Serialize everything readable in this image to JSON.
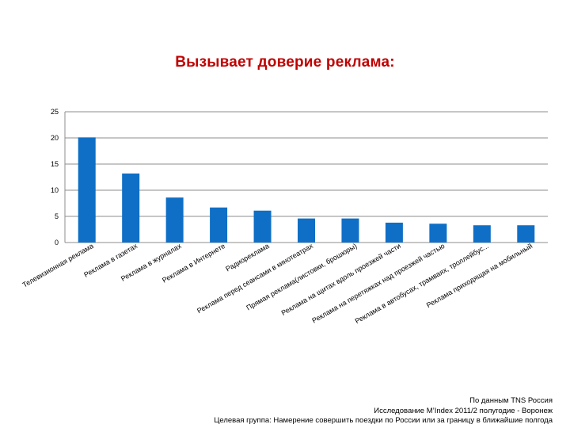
{
  "chart_data": {
    "type": "bar",
    "title": "Вызывает доверие реклама:",
    "categories": [
      "Телевизионная реклама",
      "Реклама в газетах",
      "Реклама в журналах",
      "Реклама в Интернете",
      "Радиореклама",
      "Реклама перед сеансами в кинотеатрах",
      "Прямая реклама(листовки, брошюры)",
      "Реклама на щитах вдоль проезжей части",
      "Реклама на перетяжках над проезжей частью",
      "Реклама в автобусах, трамваях, троллейбус...",
      "Реклама приходящая на мобильный"
    ],
    "values": [
      20.1,
      13.2,
      8.6,
      6.7,
      6.1,
      4.6,
      4.6,
      3.8,
      3.6,
      3.3,
      3.3
    ],
    "ylim": [
      0,
      25
    ],
    "yticks": [
      0,
      5,
      10,
      15,
      20,
      25
    ],
    "grid": true,
    "bar_color": "#0f6fc6"
  },
  "footer": {
    "line1": "По данным TNS Россия",
    "line2": "Исследование  M’Index 2011/2 полугодие - Воронеж",
    "line3": "Целевая группа: Намерение совершить поездки по России или за границу в ближайшие полгода"
  }
}
